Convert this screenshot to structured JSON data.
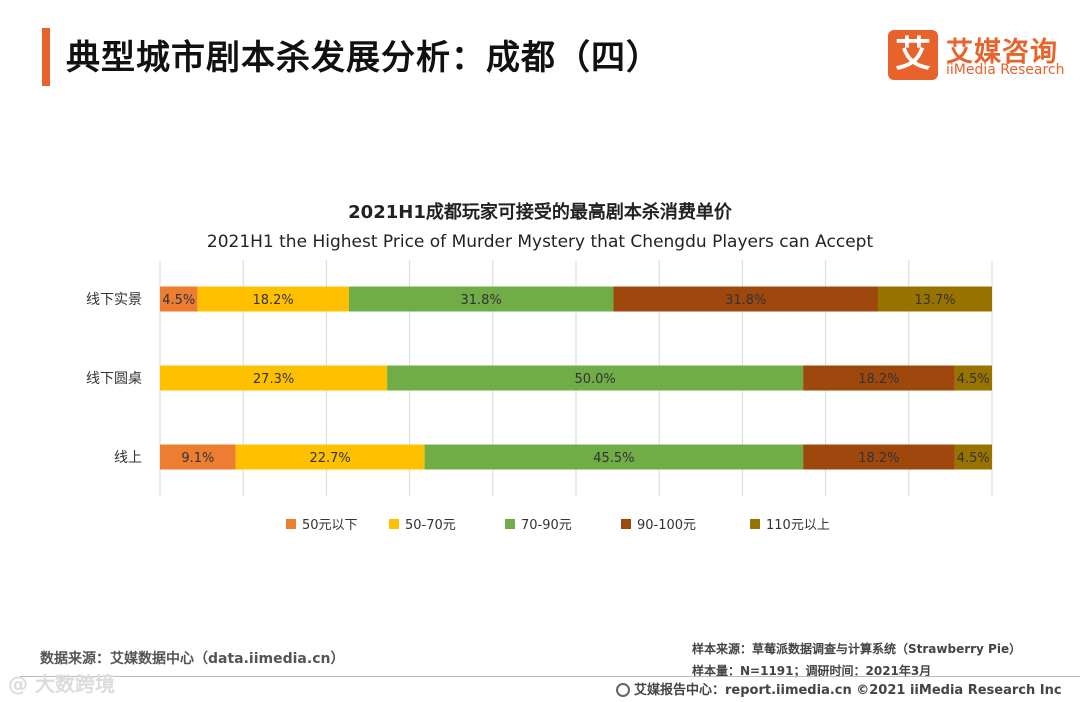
{
  "header": {
    "title": "典型城市剧本杀发展分析：成都（四）",
    "logo_char": "艾",
    "logo_cn": "艾媒咨询",
    "logo_en": "iiMedia Research"
  },
  "colors": {
    "accent": "#e8622c"
  },
  "chart_data": {
    "type": "bar",
    "orientation": "horizontal-stacked-100",
    "title": "2021H1成都玩家可接受的最高剧本杀消费单价",
    "subtitle": "2021H1 the Highest Price of Murder Mystery that Chengdu Players can Accept",
    "categories": [
      "线下实景",
      "线下圆桌",
      "线上"
    ],
    "series": [
      {
        "name": "50元以下",
        "color": "#ed7d31",
        "values": [
          4.5,
          0,
          9.1
        ],
        "labels": [
          "4.5%",
          "",
          "9.1%"
        ]
      },
      {
        "name": "50-70元",
        "color": "#ffc000",
        "values": [
          18.2,
          27.3,
          22.7
        ],
        "labels": [
          "18.2%",
          "27.3%",
          "22.7%"
        ]
      },
      {
        "name": "70-90元",
        "color": "#70ad47",
        "values": [
          31.8,
          50.0,
          45.5
        ],
        "labels": [
          "31.8%",
          "50.0%",
          "45.5%"
        ]
      },
      {
        "name": "90-100元",
        "color": "#9e480e",
        "values": [
          31.8,
          18.2,
          18.2
        ],
        "labels": [
          "31.8%",
          "18.2%",
          "18.2%"
        ]
      },
      {
        "name": "110元以上",
        "color": "#997300",
        "values": [
          13.7,
          4.5,
          4.5
        ],
        "labels": [
          "13.7%",
          "4.5%",
          "4.5%"
        ]
      }
    ],
    "xlim": [
      0,
      100
    ],
    "grid": true,
    "legend": "bottom"
  },
  "footer": {
    "data_source": "数据来源：艾媒数据中心（data.iimedia.cn）",
    "sample_source": "样本来源：草莓派数据调查与计算系统（Strawberry Pie）",
    "sample_size": "样本量：N=1191；调研时间：2021年3月",
    "report_center": "艾媒报告中心：report.iimedia.cn  ©2021  iiMedia Research  Inc",
    "watermark": "@ 大数跨境"
  }
}
